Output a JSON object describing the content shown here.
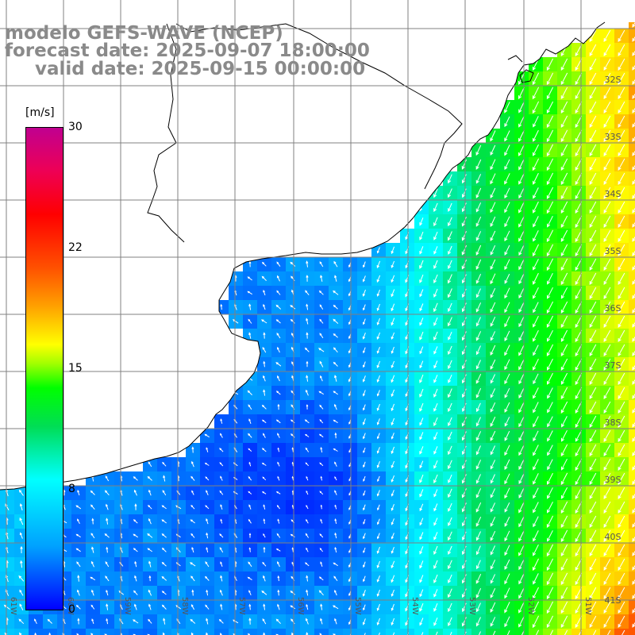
{
  "title": {
    "model": "modelo GEFS-WAVE (NCEP)",
    "forecast": "forecast date: 2025-09-07 18:00:00",
    "valid": "valid date: 2025-09-15 00:00:00"
  },
  "colorbar": {
    "unit": "[m/s]",
    "ticks": [
      "30",
      "22",
      "15",
      "8",
      "0"
    ],
    "range": [
      0,
      30
    ],
    "colors": [
      "#0000ff",
      "#00a0ff",
      "#00ffff",
      "#00dd55",
      "#00ff00",
      "#a0ff00",
      "#ffff00",
      "#ffa000",
      "#ff0000",
      "#c00090"
    ]
  },
  "map": {
    "lat_labels": [
      "32S",
      "33S",
      "34S",
      "35S",
      "36S",
      "37S",
      "38S",
      "39S",
      "40S",
      "41S"
    ],
    "lon_labels": [
      "61W",
      "60W",
      "59W",
      "58W",
      "57W",
      "56W",
      "55W",
      "54W",
      "53W",
      "52W",
      "51W"
    ],
    "land_color": "#ffffff",
    "grid_color": "#808080"
  }
}
